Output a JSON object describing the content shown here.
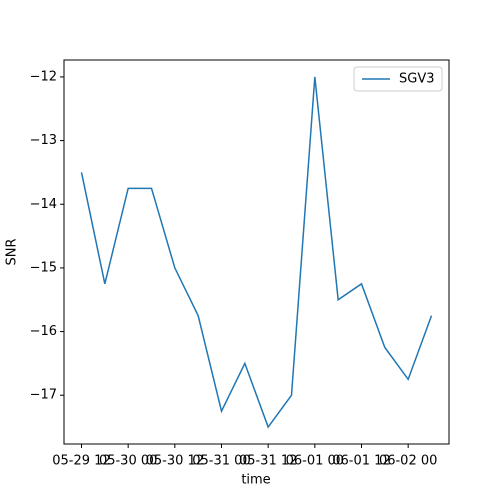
{
  "chart_data": {
    "type": "line",
    "x_label": "time",
    "y_label": "SNR",
    "x": [
      "05-29 12",
      "05-29 18",
      "05-30 00",
      "05-30 06",
      "05-30 12",
      "05-30 18",
      "05-31 00",
      "05-31 06",
      "05-31 12",
      "05-31 18",
      "06-01 00",
      "06-01 06",
      "06-01 12",
      "06-01 18",
      "06-02 00",
      "06-02 06"
    ],
    "series": [
      {
        "name": "SGV3",
        "color": "#1f77b4",
        "values": [
          -13.5,
          -15.25,
          -13.75,
          -13.75,
          -15,
          -15.75,
          -17.25,
          -16.5,
          -17.5,
          -17,
          -12,
          -15.5,
          -15.25,
          -16.25,
          -16.75,
          -15.75
        ]
      }
    ],
    "xticks": [
      "05-29 12",
      "05-30 00",
      "05-30 12",
      "05-31 00",
      "05-31 12",
      "06-01 00",
      "06-01 12",
      "06-02 00"
    ],
    "ylim": [
      -17.766,
      -11.734
    ],
    "yticks": [
      {
        "value": -17,
        "label": "−17"
      },
      {
        "value": -16,
        "label": "−16"
      },
      {
        "value": -15,
        "label": "−15"
      },
      {
        "value": -14,
        "label": "−14"
      },
      {
        "value": -13,
        "label": "−13"
      },
      {
        "value": -12,
        "label": "−12"
      }
    ],
    "legend": "upper right",
    "grid": false
  }
}
